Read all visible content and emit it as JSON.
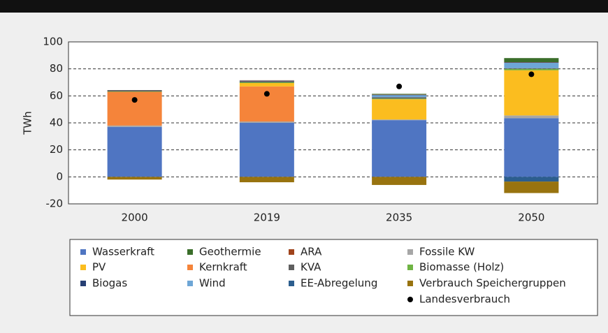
{
  "chart_data": {
    "type": "stacked_bar",
    "y_label": "TWh",
    "categories": [
      "2000",
      "2019",
      "2035",
      "2050"
    ],
    "ylim": [
      -20,
      100
    ],
    "yticks": [
      -20,
      0,
      20,
      40,
      60,
      80,
      100
    ],
    "grid": true,
    "series": [
      {
        "name": "Wasserkraft",
        "color": "#4f75c2",
        "values": [
          37,
          40,
          42,
          43.5
        ]
      },
      {
        "name": "Geothermie",
        "color": "#3a6e2a",
        "values": [
          0,
          0,
          0.5,
          3
        ]
      },
      {
        "name": "ARA",
        "color": "#a0441c",
        "values": [
          0,
          0.2,
          0.2,
          0.2
        ]
      },
      {
        "name": "Fossile KW",
        "color": "#a6a6a6",
        "values": [
          1,
          1,
          0.5,
          2
        ]
      },
      {
        "name": "PV",
        "color": "#fbbd1f",
        "values": [
          0,
          2.5,
          15,
          33.5
        ]
      },
      {
        "name": "Kernkraft",
        "color": "#f5843a",
        "values": [
          25,
          26,
          0,
          0
        ]
      },
      {
        "name": "KVA",
        "color": "#5f5f5f",
        "values": [
          1,
          1,
          1,
          0.5
        ]
      },
      {
        "name": "Biomasse (Holz)",
        "color": "#6fb443",
        "values": [
          0.3,
          0.5,
          0.5,
          1
        ]
      },
      {
        "name": "Biogas",
        "color": "#263f73",
        "values": [
          0,
          0.2,
          0.3,
          0.3
        ]
      },
      {
        "name": "Wind",
        "color": "#6ea6d6",
        "values": [
          0,
          0.2,
          1.5,
          4
        ]
      },
      {
        "name": "EE-Abregelung",
        "color": "#2c5e8e",
        "values": [
          0,
          0,
          0,
          -3.5
        ]
      },
      {
        "name": "Verbrauch Speichergruppen",
        "color": "#98730f",
        "values": [
          -2,
          -4,
          -6,
          -8.5
        ]
      },
      {
        "name": "Landesverbrauch",
        "color": "#000000",
        "type": "scatter",
        "values": [
          57,
          61.5,
          67,
          76
        ]
      }
    ]
  }
}
